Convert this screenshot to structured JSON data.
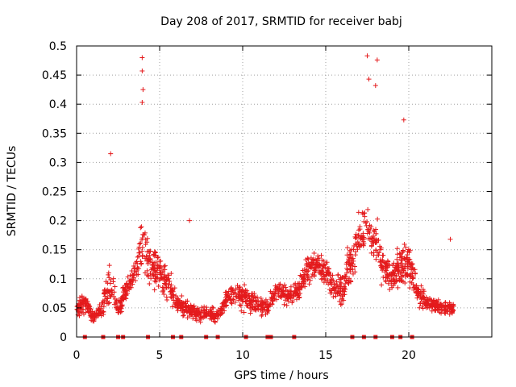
{
  "chart_data": {
    "type": "scatter",
    "title": "Day 208 of 2017, SRMTID for receiver babj",
    "xlabel": "GPS time / hours",
    "ylabel": "SRMTID / TECUs",
    "xlim": [
      0,
      25
    ],
    "ylim": [
      0,
      0.5
    ],
    "x_ticks": [
      "0",
      "5",
      "10",
      "15",
      "20"
    ],
    "x_tick_values": [
      0,
      5,
      10,
      15,
      20
    ],
    "y_ticks": [
      "0",
      "0.05",
      "0.1",
      "0.15",
      "0.2",
      "0.25",
      "0.3",
      "0.35",
      "0.4",
      "0.45",
      "0.5"
    ],
    "y_tick_values": [
      0,
      0.05,
      0.1,
      0.15,
      0.2,
      0.25,
      0.3,
      0.35,
      0.4,
      0.45,
      0.5
    ],
    "grid": true,
    "marker": "+",
    "color": "#e41a1c",
    "x_range_of_data": [
      0,
      22.7
    ],
    "note": "Dense scatter of several thousand points; values listed below are representative samples read from the figure.",
    "peaks": [
      {
        "x": 3.95,
        "y": 0.48
      },
      {
        "x": 3.95,
        "y": 0.457
      },
      {
        "x": 4.0,
        "y": 0.425
      },
      {
        "x": 3.95,
        "y": 0.403
      },
      {
        "x": 2.05,
        "y": 0.315
      },
      {
        "x": 17.5,
        "y": 0.483
      },
      {
        "x": 18.1,
        "y": 0.476
      },
      {
        "x": 17.6,
        "y": 0.443
      },
      {
        "x": 18.0,
        "y": 0.432
      },
      {
        "x": 19.7,
        "y": 0.373
      },
      {
        "x": 22.5,
        "y": 0.168
      },
      {
        "x": 6.8,
        "y": 0.2
      }
    ],
    "zero_markers_x": [
      0.5,
      1.6,
      2.5,
      2.8,
      4.3,
      5.8,
      6.3,
      7.8,
      8.5,
      10.2,
      11.5,
      11.7,
      13.1,
      16.6,
      17.3,
      18.0,
      19.0,
      19.5,
      20.2
    ]
  }
}
